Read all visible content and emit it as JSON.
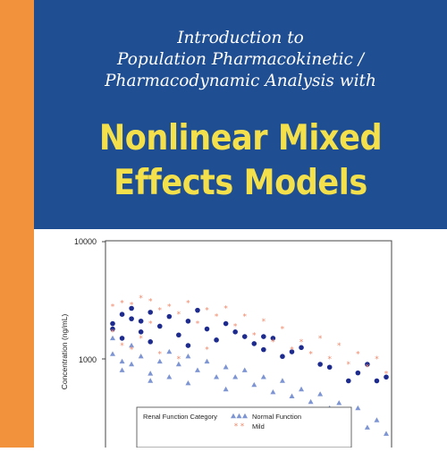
{
  "cover": {
    "subtitle_lines": [
      "Introduction to",
      "Population Pharmacokinetic /",
      "Pharmacodynamic Analysis with"
    ],
    "title_lines": [
      "Nonlinear Mixed",
      "Effects Models"
    ],
    "colors": {
      "banner": "#1f4e93",
      "spine": "#f2923c",
      "title": "#f4e04a",
      "subtitle": "#ffffff",
      "marker_blue": "#1d2b8f",
      "marker_lightblue": "#7e95d3",
      "marker_orange": "#ef8a6c"
    }
  },
  "chart_data": {
    "type": "scatter",
    "ylabel": "Concentration (ng/mL)",
    "yscale": "log",
    "yticks": [
      "10000",
      "1000"
    ],
    "ylim": [
      100,
      10000
    ],
    "legend": {
      "title": "Renal Function Category",
      "entries": [
        "Normal Function",
        "Mild"
      ],
      "placement": "bottom"
    },
    "series": [
      {
        "marker": "filled-circle",
        "values": [
          [
            2,
            2000
          ],
          [
            2,
            1800
          ],
          [
            3,
            2400
          ],
          [
            3,
            1500
          ],
          [
            4,
            2200
          ],
          [
            4,
            2700
          ],
          [
            5,
            1700
          ],
          [
            5,
            2100
          ],
          [
            6,
            2500
          ],
          [
            6,
            1400
          ],
          [
            7,
            1900
          ],
          [
            8,
            2300
          ],
          [
            9,
            1600
          ],
          [
            10,
            2100
          ],
          [
            10,
            1300
          ],
          [
            11,
            2600
          ],
          [
            12,
            1800
          ],
          [
            13,
            1450
          ],
          [
            14,
            2000
          ],
          [
            15,
            1700
          ],
          [
            16,
            1550
          ],
          [
            17,
            1350
          ],
          [
            18,
            1200
          ],
          [
            18,
            1550
          ],
          [
            19,
            1500
          ],
          [
            20,
            1050
          ],
          [
            21,
            1150
          ],
          [
            22,
            1250
          ],
          [
            24,
            900
          ],
          [
            25,
            850
          ],
          [
            27,
            650
          ],
          [
            28,
            760
          ],
          [
            29,
            900
          ],
          [
            30,
            650
          ],
          [
            31,
            700
          ]
        ]
      },
      {
        "marker": "triangle",
        "values": [
          [
            2,
            1500
          ],
          [
            2,
            1100
          ],
          [
            3,
            950
          ],
          [
            3,
            800
          ],
          [
            4,
            1300
          ],
          [
            4,
            900
          ],
          [
            5,
            1050
          ],
          [
            6,
            750
          ],
          [
            6,
            650
          ],
          [
            7,
            950
          ],
          [
            8,
            1150
          ],
          [
            8,
            700
          ],
          [
            9,
            900
          ],
          [
            10,
            1050
          ],
          [
            10,
            620
          ],
          [
            11,
            800
          ],
          [
            12,
            950
          ],
          [
            13,
            700
          ],
          [
            14,
            850
          ],
          [
            14,
            550
          ],
          [
            15,
            700
          ],
          [
            16,
            800
          ],
          [
            17,
            600
          ],
          [
            18,
            700
          ],
          [
            19,
            520
          ],
          [
            20,
            650
          ],
          [
            21,
            480
          ],
          [
            22,
            550
          ],
          [
            23,
            430
          ],
          [
            24,
            500
          ],
          [
            25,
            380
          ],
          [
            26,
            420
          ],
          [
            27,
            330
          ],
          [
            28,
            380
          ],
          [
            29,
            260
          ],
          [
            30,
            300
          ],
          [
            31,
            230
          ]
        ]
      },
      {
        "marker": "asterisk",
        "values": [
          [
            2,
            2800
          ],
          [
            2,
            1700
          ],
          [
            3,
            3000
          ],
          [
            3,
            1300
          ],
          [
            4,
            2900
          ],
          [
            4,
            1200
          ],
          [
            5,
            3300
          ],
          [
            5,
            1500
          ],
          [
            6,
            3100
          ],
          [
            6,
            2000
          ],
          [
            7,
            2600
          ],
          [
            7,
            1100
          ],
          [
            8,
            2800
          ],
          [
            9,
            2400
          ],
          [
            9,
            1000
          ],
          [
            10,
            3000
          ],
          [
            11,
            2000
          ],
          [
            12,
            2600
          ],
          [
            12,
            1200
          ],
          [
            13,
            2300
          ],
          [
            14,
            2700
          ],
          [
            15,
            1900
          ],
          [
            16,
            2300
          ],
          [
            17,
            1600
          ],
          [
            18,
            2100
          ],
          [
            19,
            1400
          ],
          [
            20,
            1800
          ],
          [
            21,
            1200
          ],
          [
            22,
            1400
          ],
          [
            23,
            1100
          ],
          [
            24,
            1500
          ],
          [
            25,
            1000
          ],
          [
            26,
            1300
          ],
          [
            27,
            900
          ],
          [
            28,
            1100
          ],
          [
            29,
            850
          ],
          [
            30,
            1000
          ],
          [
            31,
            750
          ]
        ]
      }
    ]
  }
}
